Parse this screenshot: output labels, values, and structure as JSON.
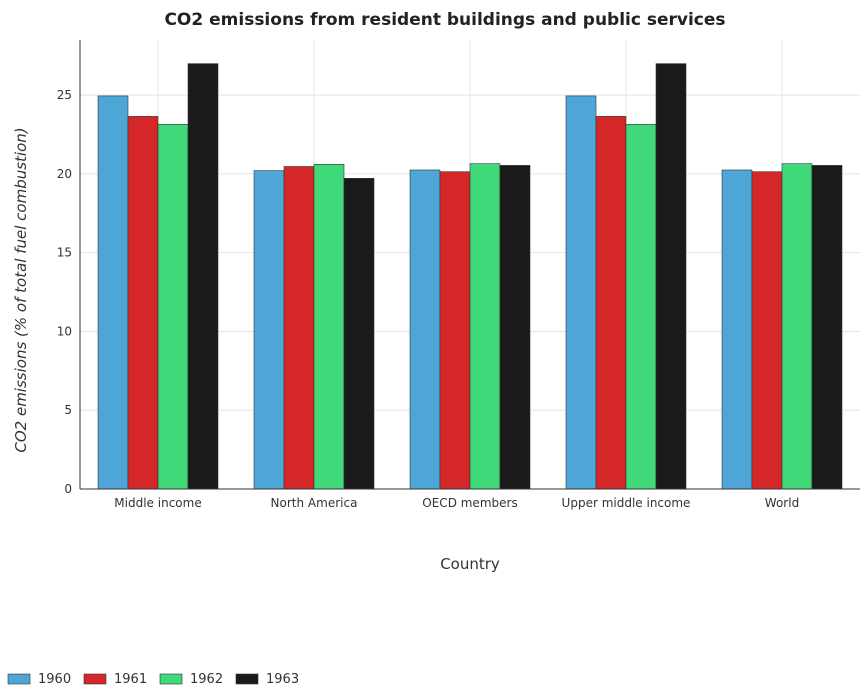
{
  "chart_data": {
    "type": "bar",
    "title": "CO2 emissions from resident buildings and public services",
    "xlabel": "Country",
    "ylabel": "CO2 emissions (% of total fuel combustion)",
    "categories": [
      "Middle income",
      "North America",
      "OECD members",
      "Upper middle income",
      "World"
    ],
    "ylim": [
      0,
      28.5
    ],
    "yticks": [
      0,
      5,
      10,
      15,
      20,
      25
    ],
    "grid": true,
    "legend_position": "bottom-left",
    "series": [
      {
        "name": "1960",
        "color": "#4ea6d8",
        "values": [
          24.95,
          20.21,
          20.25,
          24.95,
          20.25
        ]
      },
      {
        "name": "1961",
        "color": "#d62728",
        "values": [
          23.65,
          20.47,
          20.14,
          23.65,
          20.14
        ]
      },
      {
        "name": "1962",
        "color": "#3fd97a",
        "values": [
          23.15,
          20.61,
          20.65,
          23.15,
          20.65
        ]
      },
      {
        "name": "1963",
        "color": "#1a1a1a",
        "values": [
          27.0,
          19.72,
          20.54,
          27.0,
          20.54
        ]
      }
    ]
  }
}
